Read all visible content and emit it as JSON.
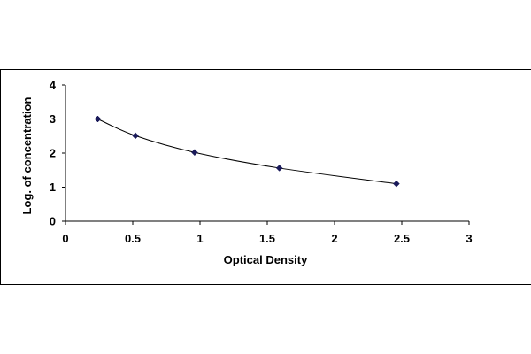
{
  "chart_data": {
    "type": "scatter",
    "xlabel": "Optical Density",
    "ylabel": "Log. of concentration",
    "xlim": [
      0,
      3
    ],
    "ylim": [
      0,
      4
    ],
    "x_ticks": [
      "0",
      "0.5",
      "1",
      "1.5",
      "2",
      "2.5",
      "3"
    ],
    "y_ticks": [
      "0",
      "1",
      "2",
      "3",
      "4"
    ],
    "grid": false,
    "legend": false,
    "trendline": "smooth",
    "marker": "diamond",
    "color": "#1a1a5a",
    "series": [
      {
        "x": [
          0.24,
          0.52,
          0.96,
          1.59,
          2.46
        ],
        "y": [
          3.0,
          2.51,
          2.02,
          1.56,
          1.1
        ]
      }
    ]
  }
}
